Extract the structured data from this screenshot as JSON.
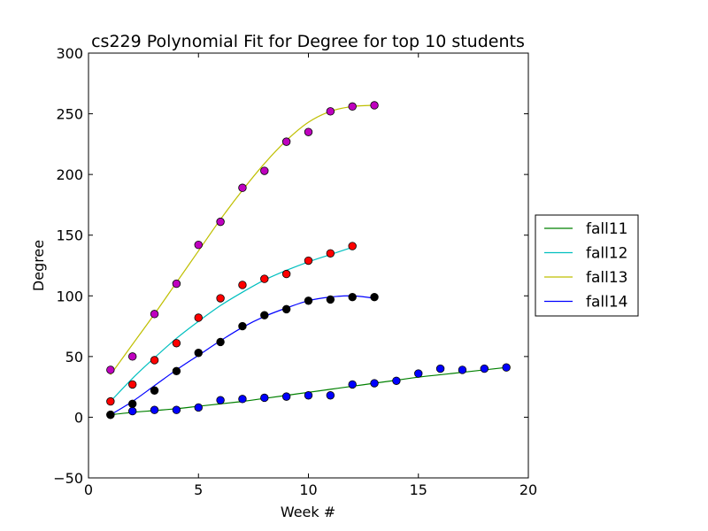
{
  "chart_data": {
    "type": "line",
    "title": "cs229 Polynomial Fit for Degree for top 10 students",
    "xlabel": "Week #",
    "ylabel": "Degree",
    "xlim": [
      0,
      20
    ],
    "ylim": [
      -50,
      300
    ],
    "xticks": [
      0,
      5,
      10,
      15,
      20
    ],
    "yticks": [
      -50,
      0,
      50,
      100,
      150,
      200,
      250,
      300
    ],
    "grid": false,
    "legend_position": "right",
    "series": [
      {
        "name": "fall11",
        "line_color": "#008000",
        "marker_color": "#0000ff",
        "x": [
          1,
          2,
          3,
          4,
          5,
          6,
          7,
          8,
          9,
          10,
          11,
          12,
          13,
          14,
          15,
          16,
          17,
          18,
          19
        ],
        "points": [
          2,
          5,
          6,
          6,
          8,
          14,
          15,
          16,
          17,
          18,
          18,
          27,
          28,
          30,
          36,
          40,
          39,
          40,
          41
        ],
        "fit": [
          2,
          4,
          5.5,
          7,
          9,
          11,
          13,
          15.5,
          18,
          20.5,
          23,
          25.5,
          28,
          30.5,
          33,
          35,
          37,
          39,
          41
        ]
      },
      {
        "name": "fall12",
        "line_color": "#00bfbf",
        "marker_color": "#ff0000",
        "x": [
          1,
          2,
          3,
          4,
          5,
          6,
          7,
          8,
          9,
          10,
          11,
          12
        ],
        "points": [
          13,
          27,
          47,
          61,
          82,
          98,
          109,
          114,
          118,
          129,
          135,
          141
        ],
        "fit": [
          13,
          32,
          49,
          65,
          79,
          92,
          103,
          113,
          121,
          128,
          134,
          140
        ]
      },
      {
        "name": "fall13",
        "line_color": "#bfbf00",
        "marker_color": "#bf00bf",
        "x": [
          1,
          2,
          3,
          4,
          5,
          6,
          7,
          8,
          9,
          10,
          11,
          12,
          13
        ],
        "points": [
          39,
          50,
          85,
          110,
          142,
          161,
          189,
          203,
          227,
          235,
          252,
          256,
          257
        ],
        "fit": [
          35,
          60,
          85,
          111,
          137,
          163,
          187,
          209,
          228,
          243,
          252,
          256,
          257
        ]
      },
      {
        "name": "fall14",
        "line_color": "#0000ff",
        "marker_color": "#000000",
        "x": [
          1,
          2,
          3,
          4,
          5,
          6,
          7,
          8,
          9,
          10,
          11,
          12,
          13
        ],
        "points": [
          2,
          11,
          22,
          38,
          53,
          62,
          75,
          84,
          89,
          96,
          97,
          99,
          99
        ],
        "fit": [
          2,
          13,
          26,
          39,
          51,
          63,
          74,
          83,
          90,
          96,
          99,
          100,
          98
        ]
      }
    ]
  }
}
